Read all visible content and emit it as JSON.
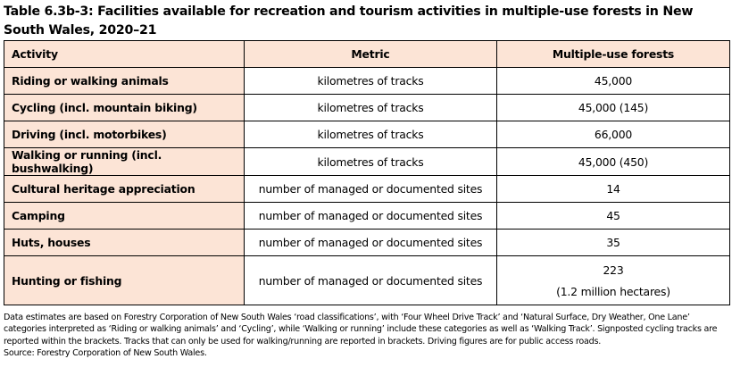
{
  "title": "Table 6.3b-3: Facilities available for recreation and tourism activities in multiple-use forests in New South Wales, 2020–21",
  "table": {
    "headers": {
      "activity": "Activity",
      "metric": "Metric",
      "value": "Multiple-use forests"
    },
    "rows": [
      {
        "activity": "Riding or walking animals",
        "metric": "kilometres of tracks",
        "value": "45,000"
      },
      {
        "activity": "Cycling (incl. mountain biking)",
        "metric": "kilometres of tracks",
        "value": "45,000 (145)"
      },
      {
        "activity": "Driving (incl. motorbikes)",
        "metric": "kilometres of tracks",
        "value": "66,000"
      },
      {
        "activity": "Walking or running (incl. bushwalking)",
        "metric": "kilometres of tracks",
        "value": "45,000 (450)"
      },
      {
        "activity": "Cultural heritage appreciation",
        "metric": "number of managed or documented sites",
        "value": "14"
      },
      {
        "activity": "Camping",
        "metric": "number of managed or documented sites",
        "value": "45"
      },
      {
        "activity": "Huts, houses",
        "metric": "number of managed or documented sites",
        "value": "35"
      },
      {
        "activity": "Hunting or fishing",
        "metric": "number of managed or documented sites",
        "value": "223",
        "value_line2": "(1.2 million hectares)"
      }
    ]
  },
  "notes": {
    "note": "Data estimates are based on Forestry Corporation of New South Wales ‘road classifications’, with ‘Four Wheel Drive Track’ and ‘Natural Surface, Dry Weather, One Lane’ categories interpreted as ‘Riding or walking animals’ and ‘Cycling’, while ‘Walking or running’ include these categories as well as ‘Walking Track’. Signposted cycling tracks are reported within the brackets. Tracks that can only be used for walking/running are reported in brackets. Driving figures are for public access roads.",
    "source": "Source: Forestry Corporation of New South Wales."
  },
  "colors": {
    "header_fill": "#fce4d6",
    "activity_fill": "#fce4d6",
    "border": "#000000"
  }
}
